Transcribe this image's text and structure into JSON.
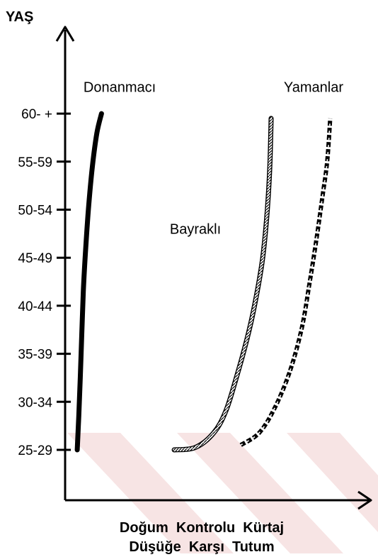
{
  "chart_data": {
    "type": "line",
    "ylabel": "YAŞ",
    "xlabel_lines": [
      "Doğum  Kontrolu  Kürtaj",
      "Düşüğe  Karşı  Tutum"
    ],
    "y_categories": [
      "25-29",
      "30-34",
      "35-39",
      "40-44",
      "45-49",
      "50-54",
      "55-59",
      "60- +"
    ],
    "series": [
      {
        "name": "Donanmacı",
        "style": "solid-thick",
        "color": "#000000",
        "points": [
          [
            0.04,
            0
          ],
          [
            0.045,
            0.7
          ],
          [
            0.05,
            1.5
          ],
          [
            0.055,
            2.4
          ],
          [
            0.06,
            3.3
          ],
          [
            0.068,
            4.2
          ],
          [
            0.078,
            5.1
          ],
          [
            0.09,
            5.9
          ],
          [
            0.105,
            6.6
          ],
          [
            0.12,
            7.0
          ]
        ]
      },
      {
        "name": "Bayraklı",
        "style": "hatched",
        "color": "#000000",
        "points": [
          [
            0.36,
            0
          ],
          [
            0.43,
            0.05
          ],
          [
            0.49,
            0.35
          ],
          [
            0.53,
            0.8
          ],
          [
            0.565,
            1.5
          ],
          [
            0.6,
            2.3
          ],
          [
            0.625,
            3.0
          ],
          [
            0.65,
            3.9
          ],
          [
            0.665,
            4.8
          ],
          [
            0.675,
            5.8
          ],
          [
            0.68,
            6.9
          ]
        ]
      },
      {
        "name": "Yamanlar",
        "style": "rope",
        "color": "#000000",
        "points": [
          [
            0.58,
            0.1
          ],
          [
            0.64,
            0.35
          ],
          [
            0.69,
            0.85
          ],
          [
            0.74,
            1.6
          ],
          [
            0.78,
            2.5
          ],
          [
            0.805,
            3.4
          ],
          [
            0.83,
            4.4
          ],
          [
            0.85,
            5.3
          ],
          [
            0.865,
            6.0
          ],
          [
            0.875,
            6.9
          ]
        ]
      }
    ],
    "annotations": [
      {
        "text": "Donanmacı",
        "x": 0.18,
        "y": 7.45
      },
      {
        "text": "Bayraklı",
        "x": 0.43,
        "y": 4.5
      },
      {
        "text": "Yamanlar",
        "x": 0.82,
        "y": 7.45
      }
    ]
  }
}
